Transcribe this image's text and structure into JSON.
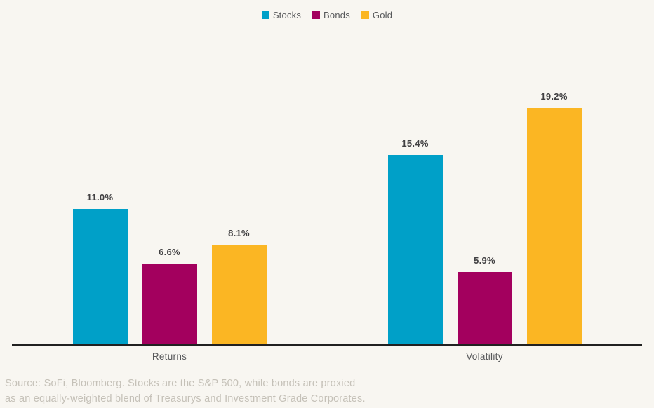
{
  "chart_data": {
    "type": "bar",
    "categories": [
      "Returns",
      "Volatility"
    ],
    "series": [
      {
        "name": "Stocks",
        "color": "#00A0C8",
        "values": [
          11.0,
          15.4
        ]
      },
      {
        "name": "Bonds",
        "color": "#A3005E",
        "values": [
          6.6,
          5.9
        ]
      },
      {
        "name": "Gold",
        "color": "#FBB623",
        "values": [
          8.1,
          19.2
        ]
      }
    ],
    "value_labels": [
      [
        "11.0%",
        "6.6%",
        "8.1%"
      ],
      [
        "15.4%",
        "5.9%",
        "19.2%"
      ]
    ],
    "title": "",
    "xlabel": "",
    "ylabel": "",
    "ylim": [
      0,
      25
    ],
    "grid": false,
    "legend_position": "top-center",
    "y_axis_ticks_visible": false
  },
  "source_note": {
    "line1": "Source: SoFi, Bloomberg. Stocks are the S&P 500, while bonds are proxied",
    "line2": "as an equally-weighted blend of Treasurys and Investment Grade Corporates."
  },
  "colors": {
    "background": "#F8F6F1",
    "axis_line": "#212121",
    "value_label": "#414042",
    "category_label": "#58595B",
    "legend_text": "#58595B",
    "source_text": "#C5C1B8"
  }
}
